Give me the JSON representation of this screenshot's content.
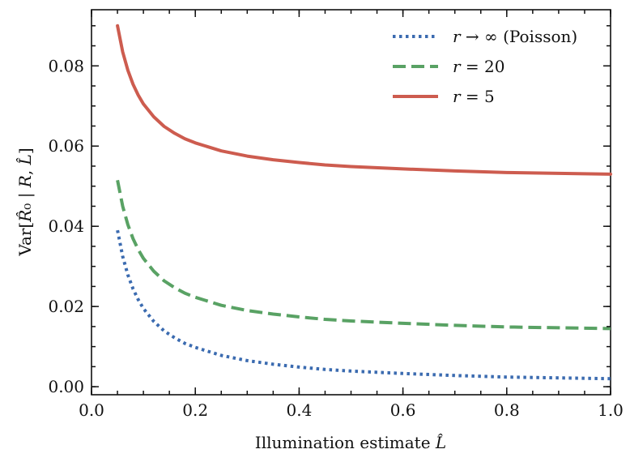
{
  "chart_data": {
    "type": "line",
    "xlabel_text": "Illumination estimate ",
    "xlabel_sym": "L̂",
    "ylabel_parts": [
      "Var[",
      "R̂",
      "₀",
      " | ",
      "R",
      ", ",
      "L̂",
      "]"
    ],
    "xlim": [
      0.0,
      1.0
    ],
    "ylim": [
      -0.002,
      0.094
    ],
    "xticks": [
      0.0,
      0.2,
      0.4,
      0.6,
      0.8,
      1.0
    ],
    "xtick_labels": [
      "0.0",
      "0.2",
      "0.4",
      "0.6",
      "0.8",
      "1.0"
    ],
    "yticks": [
      0.0,
      0.02,
      0.04,
      0.06,
      0.08
    ],
    "ytick_labels": [
      "0.00",
      "0.02",
      "0.04",
      "0.06",
      "0.08"
    ],
    "grid": false,
    "legend_position": "top-right",
    "x": [
      0.05,
      0.06,
      0.07,
      0.08,
      0.09,
      0.1,
      0.12,
      0.14,
      0.16,
      0.18,
      0.2,
      0.25,
      0.3,
      0.35,
      0.4,
      0.45,
      0.5,
      0.6,
      0.7,
      0.8,
      0.9,
      1.0
    ],
    "series": [
      {
        "name": "(Poisson)",
        "legend_sym": "r",
        "legend_rel": " → ∞ ",
        "color": "#3b6bb0",
        "style": "dotted",
        "values": [
          0.039,
          0.0325,
          0.0279,
          0.0244,
          0.0217,
          0.0195,
          0.0163,
          0.0139,
          0.0122,
          0.0108,
          0.0098,
          0.0078,
          0.0065,
          0.0056,
          0.0049,
          0.0043,
          0.0039,
          0.0033,
          0.0028,
          0.0024,
          0.0022,
          0.002
        ]
      },
      {
        "name": "",
        "legend_sym": "r",
        "legend_rel": " = 20",
        "color": "#59a264",
        "style": "dashed",
        "values": [
          0.0515,
          0.045,
          0.0404,
          0.0369,
          0.0342,
          0.032,
          0.0288,
          0.0264,
          0.0247,
          0.0233,
          0.0223,
          0.0203,
          0.019,
          0.0181,
          0.0174,
          0.0168,
          0.0164,
          0.0158,
          0.0153,
          0.0149,
          0.0147,
          0.0145
        ]
      },
      {
        "name": "",
        "legend_sym": "r",
        "legend_rel": " = 5",
        "color": "#cd5c4f",
        "style": "solid",
        "values": [
          0.09,
          0.0835,
          0.0789,
          0.0754,
          0.0727,
          0.0705,
          0.0673,
          0.0649,
          0.0632,
          0.0618,
          0.0608,
          0.0588,
          0.0575,
          0.0566,
          0.0559,
          0.0553,
          0.0549,
          0.0543,
          0.0538,
          0.0534,
          0.0532,
          0.053
        ]
      }
    ]
  }
}
